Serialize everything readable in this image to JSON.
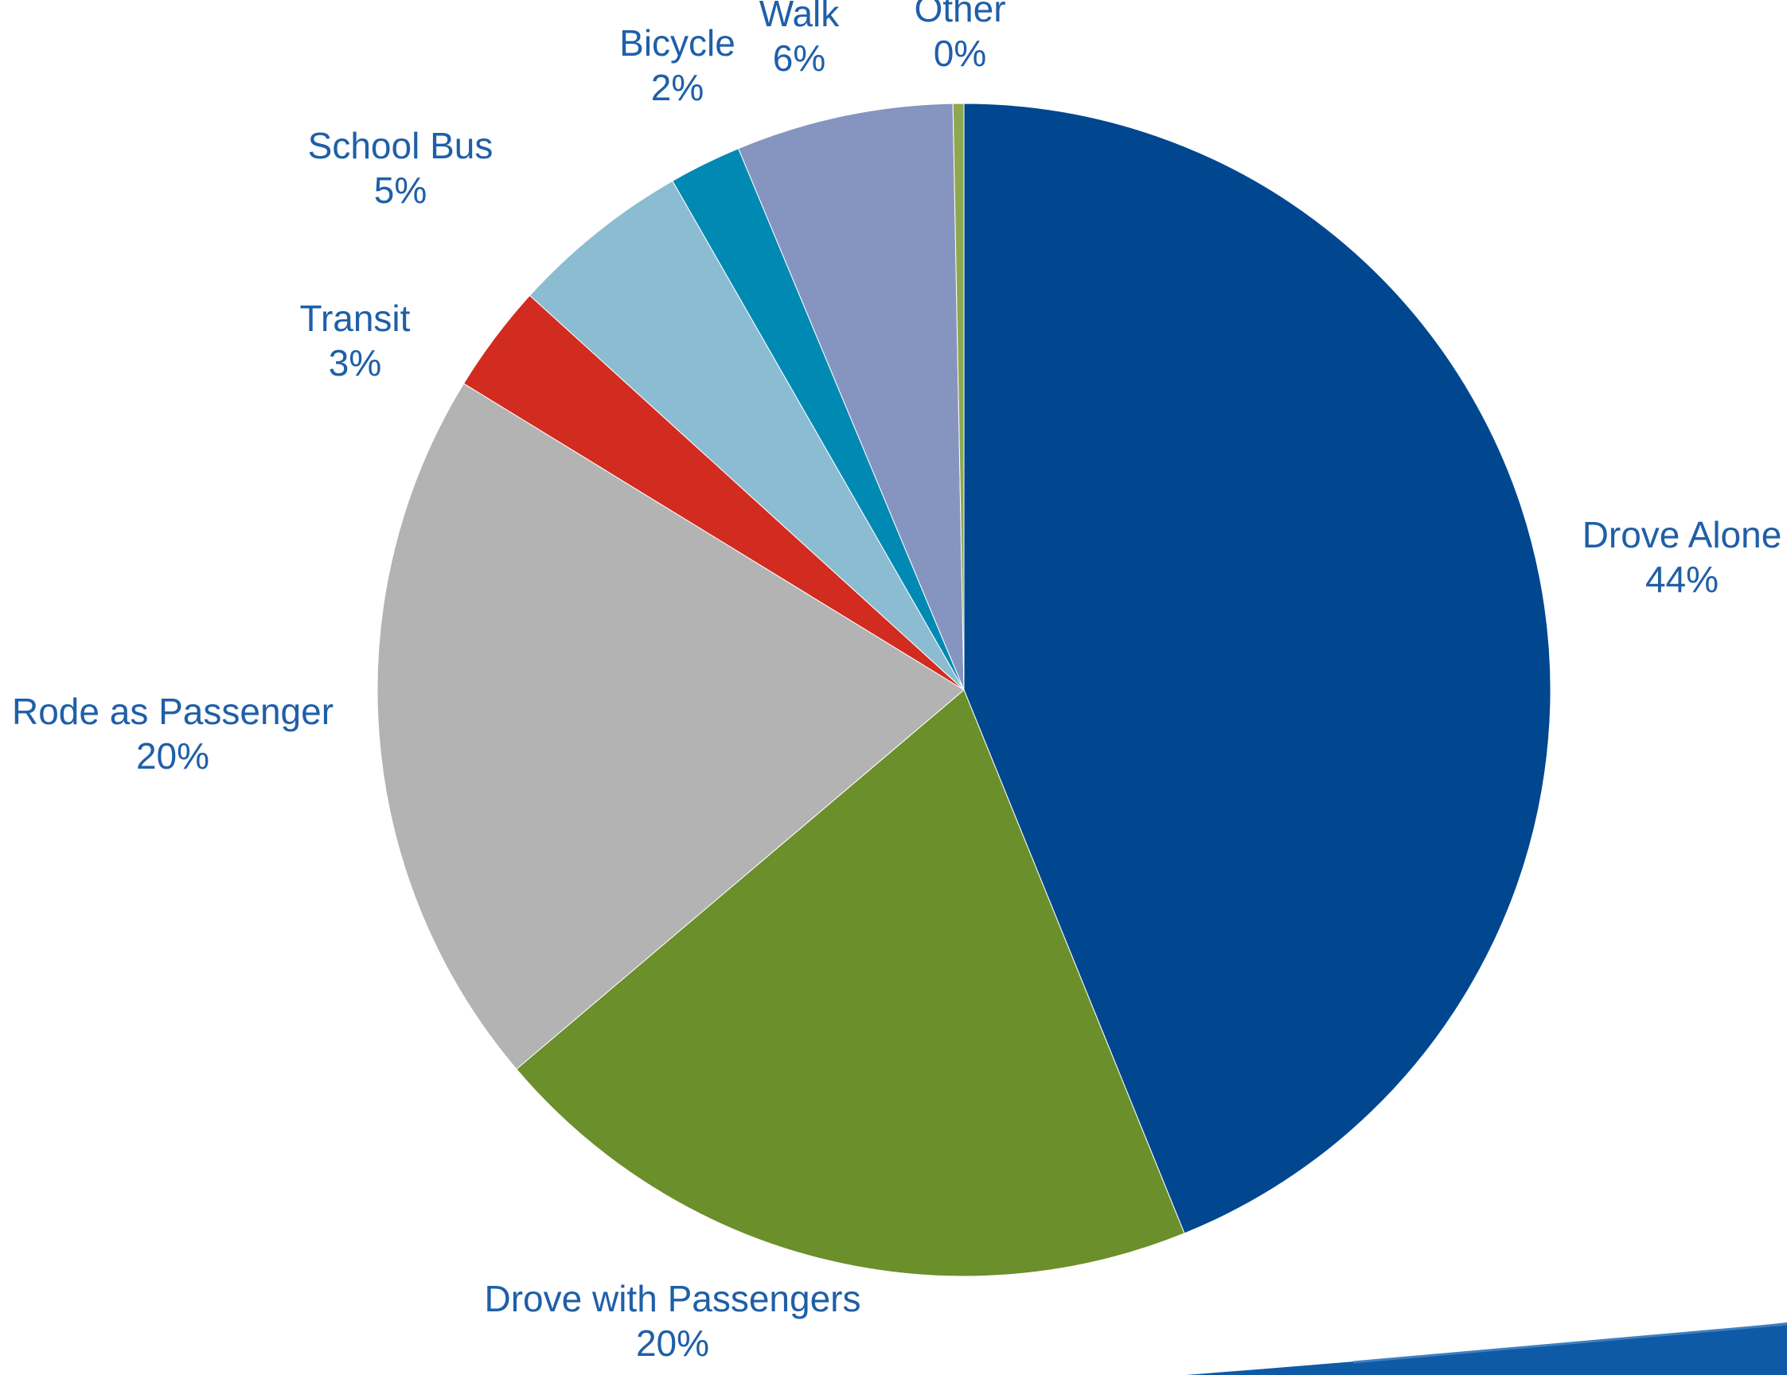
{
  "chart_data": {
    "type": "pie",
    "title": "",
    "start_angle_deg": 0,
    "direction": "clockwise",
    "slices": [
      {
        "name": "Drove Alone",
        "value": 44,
        "label": "44%",
        "color": "#00478f"
      },
      {
        "name": "Drove with Passengers",
        "value": 20,
        "label": "20%",
        "color": "#6b8f2a"
      },
      {
        "name": "Rode as Passenger",
        "value": 20,
        "label": "20%",
        "color": "#b3b3b3"
      },
      {
        "name": "Transit",
        "value": 3,
        "label": "3%",
        "color": "#d22b1f"
      },
      {
        "name": "School Bus",
        "value": 5,
        "label": "5%",
        "color": "#8bbcd2"
      },
      {
        "name": "Bicycle",
        "value": 2,
        "label": "2%",
        "color": "#0089b3"
      },
      {
        "name": "Walk",
        "value": 6,
        "label": "6%",
        "color": "#8595bf"
      },
      {
        "name": "Other",
        "value": 0.3,
        "label": "0%",
        "color": "#8fa84f"
      }
    ],
    "label_color": "#1f5fa8",
    "legend": "none"
  },
  "decoration": {
    "swoosh_color": "#0e5aa6",
    "swoosh_highlight": "#3f7fc0"
  }
}
